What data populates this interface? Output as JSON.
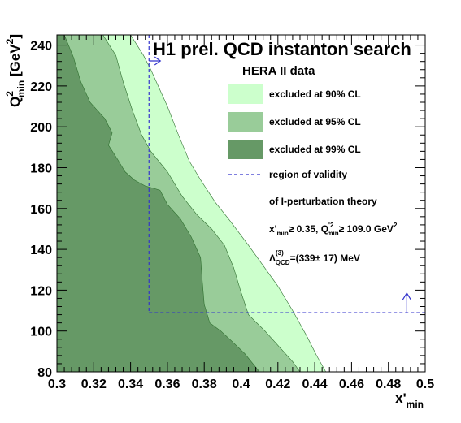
{
  "chart_data": {
    "type": "area",
    "title": "H1 prel. QCD instanton search",
    "subtitle": "HERA II data",
    "xlabel": "x'min",
    "ylabel": "Q²min [GeV²]",
    "xlim": [
      0.3,
      0.5
    ],
    "ylim": [
      80,
      245
    ],
    "x_ticks": [
      "0.3",
      "0.32",
      "0.34",
      "0.36",
      "0.38",
      "0.4",
      "0.42",
      "0.44",
      "0.46",
      "0.48",
      "0.5"
    ],
    "y_ticks": [
      "80",
      "100",
      "120",
      "140",
      "160",
      "180",
      "200",
      "220",
      "240"
    ],
    "grid": false,
    "legend_position": "right",
    "series": [
      {
        "name": "excluded at 90% CL",
        "color": "#ccffcc",
        "boundary": [
          [
            0.3,
            245
          ],
          [
            0.34,
            245
          ],
          [
            0.347,
            235
          ],
          [
            0.351,
            228
          ],
          [
            0.36,
            210
          ],
          [
            0.366,
            196
          ],
          [
            0.372,
            183
          ],
          [
            0.378,
            174
          ],
          [
            0.386,
            163
          ],
          [
            0.394,
            154
          ],
          [
            0.404,
            142
          ],
          [
            0.412,
            132
          ],
          [
            0.42,
            122
          ],
          [
            0.428,
            110
          ],
          [
            0.436,
            97
          ],
          [
            0.441,
            88
          ],
          [
            0.446,
            80
          ]
        ]
      },
      {
        "name": "excluded at 95% CL",
        "color": "#99cc99",
        "boundary": [
          [
            0.3,
            245
          ],
          [
            0.325,
            245
          ],
          [
            0.332,
            235
          ],
          [
            0.336,
            222
          ],
          [
            0.341,
            208
          ],
          [
            0.346,
            196
          ],
          [
            0.351,
            188
          ],
          [
            0.36,
            178
          ],
          [
            0.368,
            166
          ],
          [
            0.376,
            157
          ],
          [
            0.384,
            150
          ],
          [
            0.391,
            142
          ],
          [
            0.396,
            131
          ],
          [
            0.4,
            119
          ],
          [
            0.404,
            108
          ],
          [
            0.413,
            100
          ],
          [
            0.42,
            93
          ],
          [
            0.428,
            85
          ],
          [
            0.432,
            80
          ]
        ]
      },
      {
        "name": "excluded at 99% CL",
        "color": "#669966",
        "boundary": [
          [
            0.3,
            245
          ],
          [
            0.304,
            245
          ],
          [
            0.309,
            234
          ],
          [
            0.313,
            222
          ],
          [
            0.318,
            212
          ],
          [
            0.326,
            204
          ],
          [
            0.33,
            197
          ],
          [
            0.328,
            191
          ],
          [
            0.333,
            184
          ],
          [
            0.337,
            178
          ],
          [
            0.342,
            174
          ],
          [
            0.348,
            171
          ],
          [
            0.356,
            169
          ],
          [
            0.36,
            162
          ],
          [
            0.367,
            155
          ],
          [
            0.373,
            146
          ],
          [
            0.378,
            136
          ],
          [
            0.379,
            124
          ],
          [
            0.38,
            113
          ],
          [
            0.383,
            104
          ],
          [
            0.389,
            100
          ],
          [
            0.395,
            95
          ],
          [
            0.402,
            89
          ],
          [
            0.41,
            80
          ]
        ]
      }
    ],
    "validity": {
      "name": "region of validity",
      "color": "#3333cc",
      "x_min": 0.35,
      "q2_min": 109.0
    },
    "legend_entries": [
      {
        "label": "excluded at 90% CL",
        "color": "#ccffcc",
        "kind": "box"
      },
      {
        "label": "excluded at 95% CL",
        "color": "#99cc99",
        "kind": "box"
      },
      {
        "label": "excluded at 99% CL",
        "color": "#669966",
        "kind": "box"
      },
      {
        "label": "region of validity",
        "color": "#3333cc",
        "kind": "dashed"
      }
    ],
    "notes": [
      "of I-perturbation theory",
      "x'min≥ 0.35,  Q'²min≥ 109.0 GeV²",
      "Λ(3)QCD=(339± 17) MeV"
    ]
  }
}
